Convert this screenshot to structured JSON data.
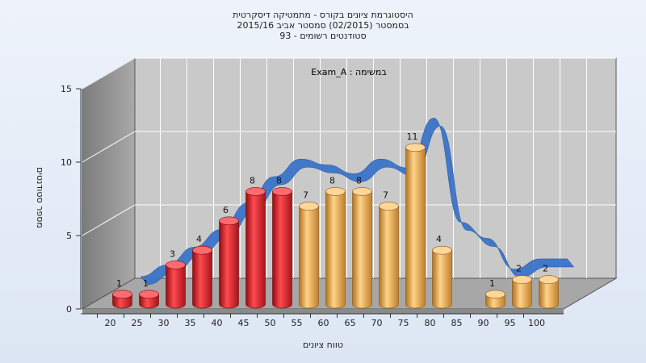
{
  "chart_data": {
    "type": "bar",
    "title_lines": [
      "היסטוגרמת ציונים בקורס - מתמטיקה דיסקרטית",
      "בסמסטר  (02/2015)  סמסטר אביב 2015/16",
      "סטודנטים רשומים - 93"
    ],
    "subtitle": "Exam_A : במשימה",
    "xlabel": "טווח ציונים",
    "ylabel": "מספר סטודנטים",
    "ylim": [
      0,
      15
    ],
    "yticks": [
      0,
      5,
      10,
      15
    ],
    "categories": [
      "20",
      "25",
      "30",
      "35",
      "40",
      "45",
      "50",
      "55",
      "60",
      "65",
      "70",
      "75",
      "80",
      "85",
      "90",
      "95",
      "100"
    ],
    "values": [
      1,
      1,
      3,
      4,
      6,
      8,
      8,
      7,
      8,
      8,
      7,
      11,
      4,
      0,
      1,
      2,
      2
    ],
    "bar_colors": [
      "#d9232a",
      "#d9232a",
      "#d9232a",
      "#d9232a",
      "#d9232a",
      "#d9232a",
      "#d9232a",
      "#e8a647",
      "#e8a647",
      "#e8a647",
      "#e8a647",
      "#e8a647",
      "#e8a647",
      "#e8a647",
      "#e8a647",
      "#e8a647",
      "#e8a647"
    ],
    "curve_values": [
      1,
      1.8,
      3,
      4.2,
      6,
      7.8,
      9,
      8.6,
      8,
      9,
      8.4,
      11.8,
      4.7,
      3.6,
      1.5,
      2.2,
      2.2
    ],
    "curve_color": "#3a74c8",
    "grid": true,
    "legend": "none"
  }
}
